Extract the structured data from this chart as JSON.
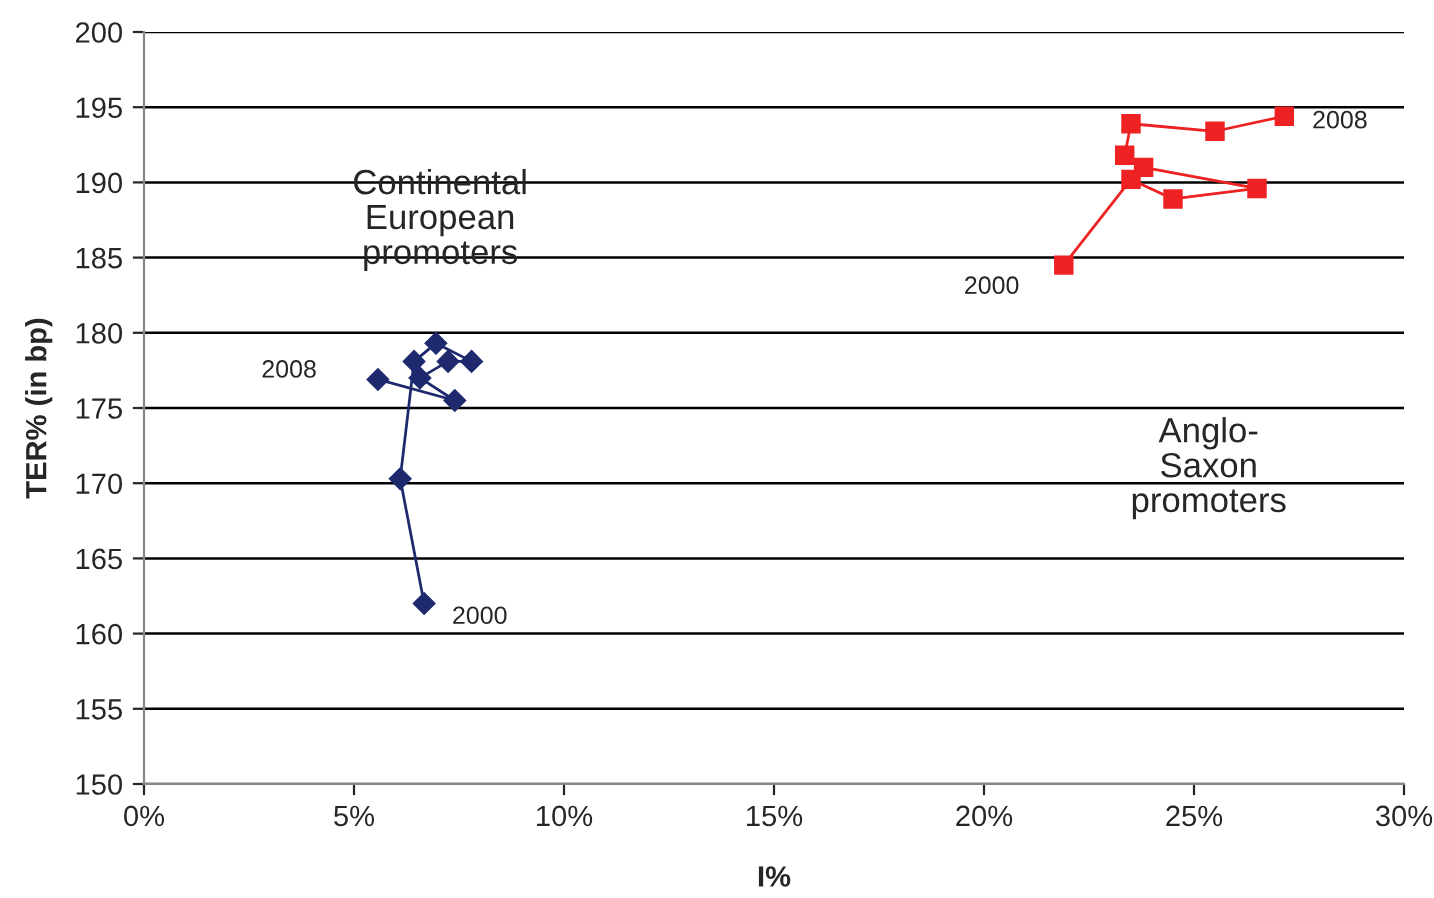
{
  "chart_data": {
    "type": "line",
    "xlabel": "I%",
    "ylabel": "TER% (in bp)",
    "xlim": [
      0,
      30
    ],
    "xticks": [
      {
        "value": 0,
        "label": "0%"
      },
      {
        "value": 5,
        "label": "5%"
      },
      {
        "value": 10,
        "label": "10%"
      },
      {
        "value": 15,
        "label": "15%"
      },
      {
        "value": 20,
        "label": "20%"
      },
      {
        "value": 25,
        "label": "25%"
      },
      {
        "value": 30,
        "label": "30%"
      }
    ],
    "ylim": [
      150,
      200
    ],
    "yticks": [
      150,
      155,
      160,
      165,
      170,
      175,
      180,
      185,
      190,
      195,
      200
    ],
    "grid": "y",
    "legend": false,
    "series": [
      {
        "color": "#1f2a6e",
        "marker": "diamond",
        "x": [
          6.67,
          6.1,
          6.43,
          6.95,
          7.8,
          7.24,
          6.57,
          7.4,
          5.57
        ],
        "values": [
          162,
          170.3,
          178.1,
          179.3,
          178.1,
          178.1,
          177.0,
          175.5,
          176.9
        ]
      },
      {
        "color": "#ee2222",
        "marker": "square",
        "x": [
          21.9,
          23.5,
          24.5,
          26.5,
          23.8,
          23.35,
          23.5,
          25.5,
          27.15
        ],
        "values": [
          184.5,
          190.2,
          188.9,
          189.6,
          191.0,
          191.8,
          193.9,
          193.4,
          194.4
        ]
      }
    ],
    "annotations": [
      "Continental European promoters",
      "Anglo-Saxon promoters",
      {
        "text": "2000",
        "x": 6.67,
        "y": 162
      },
      {
        "text": "2008",
        "x": 5.57,
        "y": 176.9
      },
      {
        "text": "2000",
        "x": 21.9,
        "y": 184.5
      },
      {
        "text": "2008",
        "x": 27.15,
        "y": 194.4
      }
    ]
  }
}
